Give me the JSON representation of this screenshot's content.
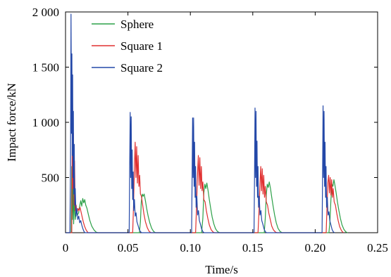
{
  "chart_data": {
    "type": "line",
    "title": "",
    "xlabel": "Time/s",
    "ylabel": "Impact force/kN",
    "xlim": [
      0,
      0.25
    ],
    "ylim": [
      0,
      2000
    ],
    "x_ticks": [
      0,
      0.05,
      0.1,
      0.15,
      0.2,
      0.25
    ],
    "x_tick_labels": [
      "0",
      "0.05",
      "0.10",
      "0.15",
      "0.20",
      "0.25"
    ],
    "y_ticks": [
      500,
      1000,
      1500,
      2000
    ],
    "y_tick_labels": [
      "500",
      "1 000",
      "1 500",
      "2 000"
    ],
    "grid": false,
    "legend_position": "top-left",
    "series": [
      {
        "name": "Sphere",
        "color": "#2ca048",
        "points": [
          [
            0.0,
            0
          ],
          [
            0.0045,
            0
          ],
          [
            0.005,
            600
          ],
          [
            0.0055,
            120
          ],
          [
            0.006,
            420
          ],
          [
            0.0065,
            80
          ],
          [
            0.007,
            300
          ],
          [
            0.0078,
            120
          ],
          [
            0.0085,
            200
          ],
          [
            0.0095,
            160
          ],
          [
            0.0105,
            180
          ],
          [
            0.0115,
            250
          ],
          [
            0.0122,
            290
          ],
          [
            0.013,
            240
          ],
          [
            0.0138,
            310
          ],
          [
            0.0146,
            270
          ],
          [
            0.0154,
            300
          ],
          [
            0.0162,
            250
          ],
          [
            0.0172,
            220
          ],
          [
            0.0182,
            170
          ],
          [
            0.0195,
            110
          ],
          [
            0.021,
            60
          ],
          [
            0.0228,
            25
          ],
          [
            0.0245,
            5
          ],
          [
            0.026,
            0
          ],
          [
            0.0585,
            0
          ],
          [
            0.0592,
            0
          ],
          [
            0.06,
            100
          ],
          [
            0.0607,
            280
          ],
          [
            0.0615,
            350
          ],
          [
            0.0622,
            330
          ],
          [
            0.063,
            350
          ],
          [
            0.064,
            290
          ],
          [
            0.065,
            220
          ],
          [
            0.0662,
            150
          ],
          [
            0.0675,
            90
          ],
          [
            0.069,
            40
          ],
          [
            0.0705,
            12
          ],
          [
            0.072,
            0
          ],
          [
            0.108,
            0
          ],
          [
            0.109,
            0
          ],
          [
            0.11,
            130
          ],
          [
            0.1108,
            360
          ],
          [
            0.1116,
            440
          ],
          [
            0.1124,
            400
          ],
          [
            0.1132,
            450
          ],
          [
            0.1142,
            380
          ],
          [
            0.1152,
            300
          ],
          [
            0.1163,
            220
          ],
          [
            0.1175,
            140
          ],
          [
            0.1188,
            80
          ],
          [
            0.1202,
            35
          ],
          [
            0.1218,
            10
          ],
          [
            0.1235,
            0
          ],
          [
            0.1585,
            0
          ],
          [
            0.1592,
            0
          ],
          [
            0.16,
            130
          ],
          [
            0.1608,
            340
          ],
          [
            0.1616,
            440
          ],
          [
            0.1624,
            410
          ],
          [
            0.1632,
            460
          ],
          [
            0.1642,
            400
          ],
          [
            0.1652,
            320
          ],
          [
            0.1663,
            240
          ],
          [
            0.1675,
            160
          ],
          [
            0.1688,
            90
          ],
          [
            0.1702,
            40
          ],
          [
            0.1718,
            12
          ],
          [
            0.1735,
            0
          ],
          [
            0.21,
            0
          ],
          [
            0.211,
            0
          ],
          [
            0.2118,
            100
          ],
          [
            0.2126,
            300
          ],
          [
            0.2134,
            440
          ],
          [
            0.2142,
            420
          ],
          [
            0.215,
            480
          ],
          [
            0.2158,
            430
          ],
          [
            0.2168,
            360
          ],
          [
            0.2178,
            280
          ],
          [
            0.219,
            200
          ],
          [
            0.2202,
            130
          ],
          [
            0.2215,
            70
          ],
          [
            0.223,
            30
          ],
          [
            0.2245,
            8
          ],
          [
            0.226,
            0
          ]
        ]
      },
      {
        "name": "Square 1",
        "color": "#e03030",
        "points": [
          [
            0.0,
            0
          ],
          [
            0.005,
            0
          ],
          [
            0.0056,
            1200
          ],
          [
            0.006,
            400
          ],
          [
            0.0064,
            900
          ],
          [
            0.0068,
            250
          ],
          [
            0.0072,
            650
          ],
          [
            0.0078,
            200
          ],
          [
            0.0085,
            250
          ],
          [
            0.0092,
            180
          ],
          [
            0.01,
            220
          ],
          [
            0.0108,
            200
          ],
          [
            0.0116,
            230
          ],
          [
            0.0124,
            190
          ],
          [
            0.0132,
            150
          ],
          [
            0.0142,
            100
          ],
          [
            0.0152,
            60
          ],
          [
            0.0165,
            25
          ],
          [
            0.018,
            0
          ],
          [
            0.053,
            0
          ],
          [
            0.0538,
            0
          ],
          [
            0.0545,
            250
          ],
          [
            0.0552,
            600
          ],
          [
            0.0558,
            820
          ],
          [
            0.0564,
            500
          ],
          [
            0.057,
            780
          ],
          [
            0.0576,
            450
          ],
          [
            0.0582,
            700
          ],
          [
            0.0588,
            420
          ],
          [
            0.0594,
            520
          ],
          [
            0.06,
            350
          ],
          [
            0.0608,
            330
          ],
          [
            0.0618,
            250
          ],
          [
            0.0628,
            170
          ],
          [
            0.064,
            100
          ],
          [
            0.0655,
            45
          ],
          [
            0.067,
            12
          ],
          [
            0.0685,
            0
          ],
          [
            0.1035,
            0
          ],
          [
            0.1042,
            0
          ],
          [
            0.105,
            250
          ],
          [
            0.1058,
            550
          ],
          [
            0.1064,
            700
          ],
          [
            0.107,
            430
          ],
          [
            0.1076,
            680
          ],
          [
            0.1082,
            400
          ],
          [
            0.1088,
            600
          ],
          [
            0.1094,
            380
          ],
          [
            0.11,
            460
          ],
          [
            0.1108,
            300
          ],
          [
            0.1118,
            280
          ],
          [
            0.1128,
            200
          ],
          [
            0.114,
            130
          ],
          [
            0.1152,
            70
          ],
          [
            0.1166,
            28
          ],
          [
            0.1182,
            6
          ],
          [
            0.1195,
            0
          ],
          [
            0.1535,
            0
          ],
          [
            0.1542,
            0
          ],
          [
            0.155,
            200
          ],
          [
            0.1558,
            450
          ],
          [
            0.1564,
            600
          ],
          [
            0.157,
            380
          ],
          [
            0.1576,
            580
          ],
          [
            0.1582,
            350
          ],
          [
            0.1588,
            520
          ],
          [
            0.1594,
            320
          ],
          [
            0.16,
            420
          ],
          [
            0.1608,
            280
          ],
          [
            0.1618,
            250
          ],
          [
            0.1628,
            180
          ],
          [
            0.164,
            120
          ],
          [
            0.1652,
            60
          ],
          [
            0.1666,
            25
          ],
          [
            0.1682,
            5
          ],
          [
            0.1695,
            0
          ],
          [
            0.208,
            0
          ],
          [
            0.2088,
            0
          ],
          [
            0.2095,
            250
          ],
          [
            0.2102,
            460
          ],
          [
            0.2108,
            520
          ],
          [
            0.2114,
            360
          ],
          [
            0.212,
            500
          ],
          [
            0.2126,
            340
          ],
          [
            0.2132,
            480
          ],
          [
            0.2138,
            320
          ],
          [
            0.2144,
            400
          ],
          [
            0.2152,
            280
          ],
          [
            0.2162,
            250
          ],
          [
            0.2172,
            180
          ],
          [
            0.2184,
            110
          ],
          [
            0.2196,
            55
          ],
          [
            0.221,
            20
          ],
          [
            0.2225,
            0
          ]
        ]
      },
      {
        "name": "Square 2",
        "color": "#2448a8",
        "points": [
          [
            0.0,
            0
          ],
          [
            0.0035,
            0
          ],
          [
            0.004,
            600
          ],
          [
            0.0044,
            1980
          ],
          [
            0.0048,
            900
          ],
          [
            0.0051,
            1620
          ],
          [
            0.0054,
            700
          ],
          [
            0.0057,
            1430
          ],
          [
            0.006,
            500
          ],
          [
            0.0063,
            1100
          ],
          [
            0.0066,
            350
          ],
          [
            0.007,
            800
          ],
          [
            0.0074,
            250
          ],
          [
            0.0078,
            400
          ],
          [
            0.0084,
            150
          ],
          [
            0.009,
            220
          ],
          [
            0.0098,
            120
          ],
          [
            0.0106,
            150
          ],
          [
            0.0114,
            90
          ],
          [
            0.0122,
            110
          ],
          [
            0.013,
            70
          ],
          [
            0.0138,
            40
          ],
          [
            0.0146,
            15
          ],
          [
            0.0155,
            0
          ],
          [
            0.0505,
            0
          ],
          [
            0.051,
            0
          ],
          [
            0.0514,
            600
          ],
          [
            0.0518,
            1090
          ],
          [
            0.0522,
            500
          ],
          [
            0.0526,
            1050
          ],
          [
            0.053,
            400
          ],
          [
            0.0534,
            750
          ],
          [
            0.0538,
            300
          ],
          [
            0.0542,
            550
          ],
          [
            0.0546,
            200
          ],
          [
            0.0552,
            300
          ],
          [
            0.0558,
            150
          ],
          [
            0.0565,
            180
          ],
          [
            0.0572,
            100
          ],
          [
            0.058,
            70
          ],
          [
            0.059,
            30
          ],
          [
            0.06,
            10
          ],
          [
            0.061,
            0
          ],
          [
            0.1005,
            0
          ],
          [
            0.101,
            0
          ],
          [
            0.1014,
            500
          ],
          [
            0.1018,
            1040
          ],
          [
            0.1022,
            500
          ],
          [
            0.1026,
            1040
          ],
          [
            0.103,
            420
          ],
          [
            0.1034,
            820
          ],
          [
            0.1038,
            320
          ],
          [
            0.1042,
            600
          ],
          [
            0.1046,
            230
          ],
          [
            0.1052,
            330
          ],
          [
            0.1058,
            160
          ],
          [
            0.1065,
            200
          ],
          [
            0.1072,
            110
          ],
          [
            0.108,
            80
          ],
          [
            0.109,
            35
          ],
          [
            0.11,
            10
          ],
          [
            0.111,
            0
          ],
          [
            0.1505,
            0
          ],
          [
            0.151,
            0
          ],
          [
            0.1514,
            500
          ],
          [
            0.1518,
            1130
          ],
          [
            0.1522,
            500
          ],
          [
            0.1526,
            1100
          ],
          [
            0.153,
            420
          ],
          [
            0.1534,
            830
          ],
          [
            0.1538,
            320
          ],
          [
            0.1542,
            600
          ],
          [
            0.1546,
            230
          ],
          [
            0.1552,
            330
          ],
          [
            0.1558,
            160
          ],
          [
            0.1565,
            200
          ],
          [
            0.1572,
            110
          ],
          [
            0.158,
            80
          ],
          [
            0.159,
            35
          ],
          [
            0.16,
            10
          ],
          [
            0.161,
            0
          ],
          [
            0.205,
            0
          ],
          [
            0.2055,
            0
          ],
          [
            0.2059,
            500
          ],
          [
            0.2063,
            1150
          ],
          [
            0.2067,
            500
          ],
          [
            0.2071,
            1100
          ],
          [
            0.2075,
            420
          ],
          [
            0.2079,
            820
          ],
          [
            0.2083,
            320
          ],
          [
            0.2087,
            600
          ],
          [
            0.2091,
            230
          ],
          [
            0.2097,
            320
          ],
          [
            0.2103,
            160
          ],
          [
            0.211,
            190
          ],
          [
            0.2117,
            110
          ],
          [
            0.2125,
            75
          ],
          [
            0.2135,
            30
          ],
          [
            0.2145,
            8
          ],
          [
            0.2155,
            0
          ]
        ]
      }
    ]
  }
}
